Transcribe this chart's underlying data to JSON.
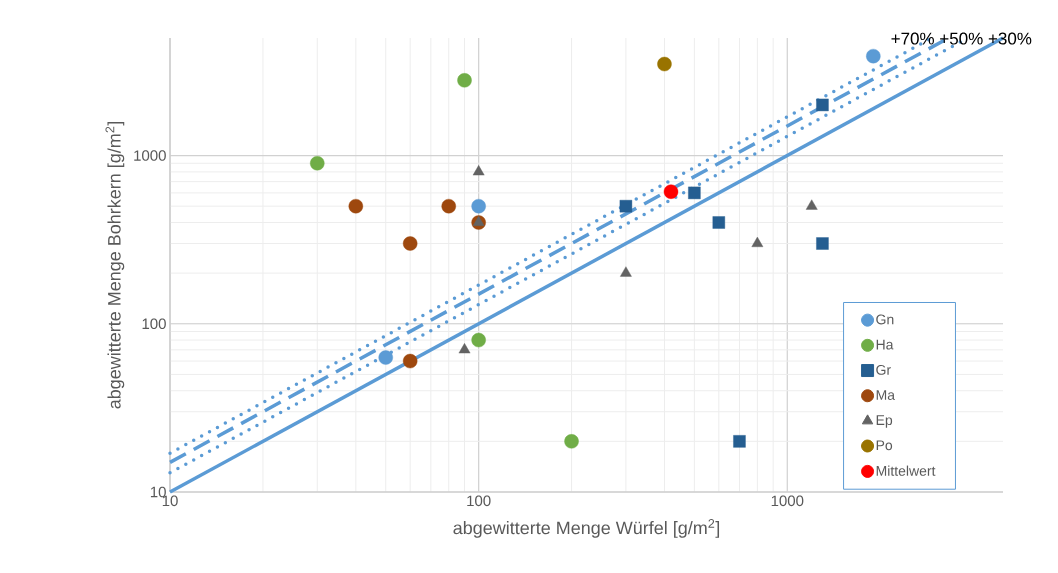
{
  "chart_data": {
    "type": "scatter",
    "xlabel": "abgewitterte Menge Würfel [g/m$^{2}$]",
    "ylabel": "abgewitterte Menge Bohrkern [g/m$^{2}$]",
    "log": "xy",
    "grid": true,
    "legend": "bottom right",
    "xlim": [
      10,
      5000
    ],
    "ylim": [
      10,
      5000
    ],
    "xticks": [
      10,
      100,
      1000
    ],
    "yticks": [
      10,
      100,
      1000
    ],
    "annotations": [
      "+70% +50% +30%"
    ],
    "series": [
      {
        "type": "line",
        "color": "#5b9bd5",
        "line_style": "solid",
        "marker": "none",
        "x": [
          10,
          5000
        ],
        "values": [
          10,
          5000
        ]
      },
      {
        "type": "line",
        "color": "#5b9bd5",
        "line_style": "dotted",
        "marker": "none",
        "x": [
          10,
          3846
        ],
        "values": [
          13,
          5000
        ]
      },
      {
        "type": "line",
        "color": "#5b9bd5",
        "line_style": "dashed",
        "marker": "none",
        "x": [
          10,
          3333
        ],
        "values": [
          15,
          5000
        ]
      },
      {
        "type": "line",
        "color": "#5b9bd5",
        "line_style": "dotted",
        "marker": "none",
        "x": [
          10,
          2941
        ],
        "values": [
          17,
          5000
        ]
      },
      {
        "name": "Gn",
        "color": "#5b9bd5",
        "marker": "circle",
        "x": [
          50,
          100,
          1900
        ],
        "values": [
          63,
          500,
          3900
        ]
      },
      {
        "name": "Ha",
        "color": "#70ad47",
        "marker": "circle",
        "x": [
          30,
          90,
          100,
          200
        ],
        "values": [
          900,
          2800,
          80,
          20
        ]
      },
      {
        "name": "Gr",
        "color": "#255e91",
        "marker": "square",
        "x": [
          300,
          500,
          600,
          700,
          1300,
          1300
        ],
        "values": [
          500,
          600,
          400,
          20,
          2000,
          300
        ]
      },
      {
        "name": "Ma",
        "color": "#9e480e",
        "marker": "circle",
        "x": [
          40,
          60,
          80,
          100,
          60
        ],
        "values": [
          500,
          300,
          500,
          400,
          60
        ]
      },
      {
        "name": "Ep",
        "color": "#636363",
        "marker": "triangle",
        "x": [
          100,
          100,
          90,
          300,
          800,
          1200
        ],
        "values": [
          800,
          400,
          70,
          200,
          300,
          500
        ]
      },
      {
        "name": "Po",
        "color": "#997300",
        "marker": "circle",
        "x": [
          400
        ],
        "values": [
          3500
        ]
      },
      {
        "name": "Mittelwert",
        "color": "#ff0000",
        "marker": "circle",
        "x": [
          420
        ],
        "values": [
          610
        ]
      }
    ]
  }
}
